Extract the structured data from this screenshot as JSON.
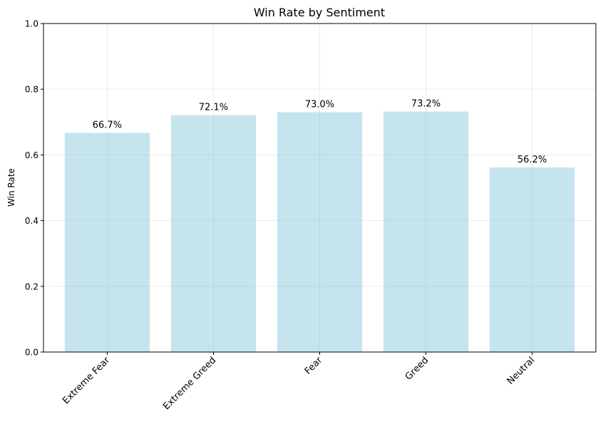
{
  "chart_data": {
    "type": "bar",
    "title": "Win Rate by Sentiment",
    "xlabel": "",
    "ylabel": "Win Rate",
    "categories": [
      "Extreme Fear",
      "Extreme Greed",
      "Fear",
      "Greed",
      "Neutral"
    ],
    "values": [
      0.667,
      0.721,
      0.73,
      0.732,
      0.562
    ],
    "data_labels": [
      "66.7%",
      "72.1%",
      "73.0%",
      "73.2%",
      "56.2%"
    ],
    "ylim": [
      0,
      1.0
    ],
    "yticks": [
      0.0,
      0.2,
      0.4,
      0.6,
      0.8,
      1.0
    ],
    "ytick_labels": [
      "0.0",
      "0.2",
      "0.4",
      "0.6",
      "0.8",
      "1.0"
    ],
    "grid": true,
    "bar_color": "#add8e6",
    "grid_color": "#b0b0b0",
    "axis_color": "#000000"
  }
}
